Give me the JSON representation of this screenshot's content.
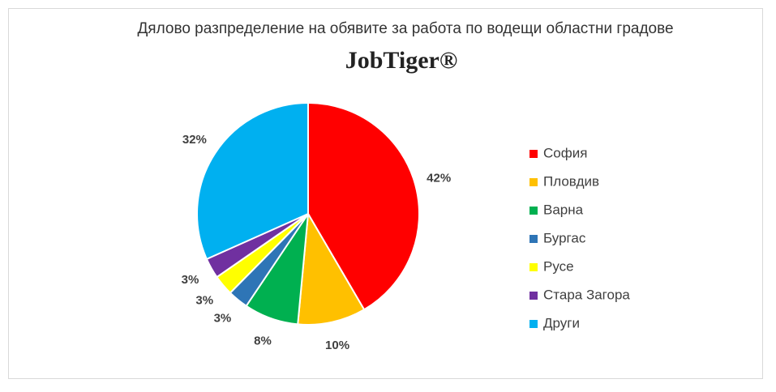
{
  "chart_data": {
    "type": "pie",
    "title": "Дялово разпределение на обявите за работа по водещи областни градове",
    "logo": "JobTiger®",
    "categories": [
      "София",
      "Пловдив",
      "Варна",
      "Бургас",
      "Русе",
      "Стара Загора",
      "Други"
    ],
    "values": [
      42,
      10,
      8,
      3,
      3,
      3,
      32
    ],
    "value_labels": [
      "42%",
      "10%",
      "8%",
      "3%",
      "3%",
      "3%",
      "32%"
    ],
    "colors": [
      "#ff0000",
      "#ffc000",
      "#00b050",
      "#2e75b6",
      "#ffff00",
      "#7030a0",
      "#00b0f0"
    ],
    "legend": "right"
  }
}
